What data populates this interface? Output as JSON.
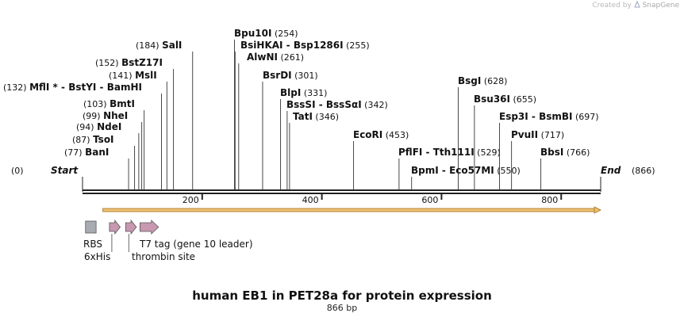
{
  "credit": {
    "prefix": "Created by",
    "brand": "SnapGene"
  },
  "title": "human EB1 in PET28a for protein expression",
  "subtitle": "866 bp",
  "sequence": {
    "length": 866,
    "start_label": "Start",
    "end_label": "End",
    "start_pos": "(0)",
    "end_pos": "(866)"
  },
  "ticks": [
    "200",
    "400",
    "600",
    "800"
  ],
  "tick_values": [
    200,
    400,
    600,
    800
  ],
  "colors": {
    "orf": "#f0c070",
    "orf_stroke": "#a07020",
    "rbs": "#a8acb2",
    "tag": "#c898b0",
    "backbone": "#222222"
  },
  "sites": [
    {
      "pos_label": "(77)",
      "parts": [
        "BanI"
      ],
      "pos": 77
    },
    {
      "pos_label": "(87)",
      "parts": [
        "TsoI"
      ],
      "pos": 87
    },
    {
      "pos_label": "(94)",
      "parts": [
        "NdeI"
      ],
      "pos": 94
    },
    {
      "pos_label": "(99)",
      "parts": [
        "NheI"
      ],
      "pos": 99
    },
    {
      "pos_label": "(103)",
      "parts": [
        "BmtI"
      ],
      "pos": 103
    },
    {
      "pos_label": "(132)",
      "parts": [
        "MflI *",
        "BstYI",
        "BamHI"
      ],
      "pos": 132
    },
    {
      "pos_label": "(141)",
      "parts": [
        "MslI"
      ],
      "pos": 141
    },
    {
      "pos_label": "(152)",
      "parts": [
        "BstZ17I"
      ],
      "pos": 152
    },
    {
      "pos_label": "(184)",
      "parts": [
        "SalI"
      ],
      "pos": 184
    },
    {
      "pos_label": "(254)",
      "parts": [
        "Bpu10I"
      ],
      "pos": 254
    },
    {
      "pos_label": "(255)",
      "parts": [
        "BsiHKAI",
        "Bsp1286I"
      ],
      "pos": 255
    },
    {
      "pos_label": "(261)",
      "parts": [
        "AlwNI"
      ],
      "pos": 261
    },
    {
      "pos_label": "(301)",
      "parts": [
        "BsrDI"
      ],
      "pos": 301
    },
    {
      "pos_label": "(331)",
      "parts": [
        "BlpI"
      ],
      "pos": 331
    },
    {
      "pos_label": "(342)",
      "parts": [
        "BssSI",
        "BssSαI"
      ],
      "pos": 342
    },
    {
      "pos_label": "(346)",
      "parts": [
        "TatI"
      ],
      "pos": 346
    },
    {
      "pos_label": "(453)",
      "parts": [
        "EcoRI"
      ],
      "pos": 453
    },
    {
      "pos_label": "(529)",
      "parts": [
        "PflFI",
        "Tth111I"
      ],
      "pos": 529
    },
    {
      "pos_label": "(550)",
      "parts": [
        "BpmI",
        "Eco57MI"
      ],
      "pos": 550
    },
    {
      "pos_label": "(628)",
      "parts": [
        "BsgI"
      ],
      "pos": 628
    },
    {
      "pos_label": "(655)",
      "parts": [
        "Bsu36I"
      ],
      "pos": 655
    },
    {
      "pos_label": "(697)",
      "parts": [
        "Esp3I",
        "BsmBI"
      ],
      "pos": 697
    },
    {
      "pos_label": "(717)",
      "parts": [
        "PvuII"
      ],
      "pos": 717
    },
    {
      "pos_label": "(766)",
      "parts": [
        "BbsI"
      ],
      "pos": 766
    }
  ],
  "features": [
    {
      "label": "RBS",
      "type": "rbs",
      "start": 5,
      "end": 28
    },
    {
      "label": "6xHis",
      "type": "tag",
      "start": 45,
      "end": 63
    },
    {
      "label": "thrombin site",
      "type": "tag",
      "start": 72,
      "end": 90
    },
    {
      "label": "T7 tag (gene 10 leader)",
      "type": "tag",
      "start": 96,
      "end": 127
    }
  ],
  "orf": {
    "start": 34,
    "end": 866
  }
}
